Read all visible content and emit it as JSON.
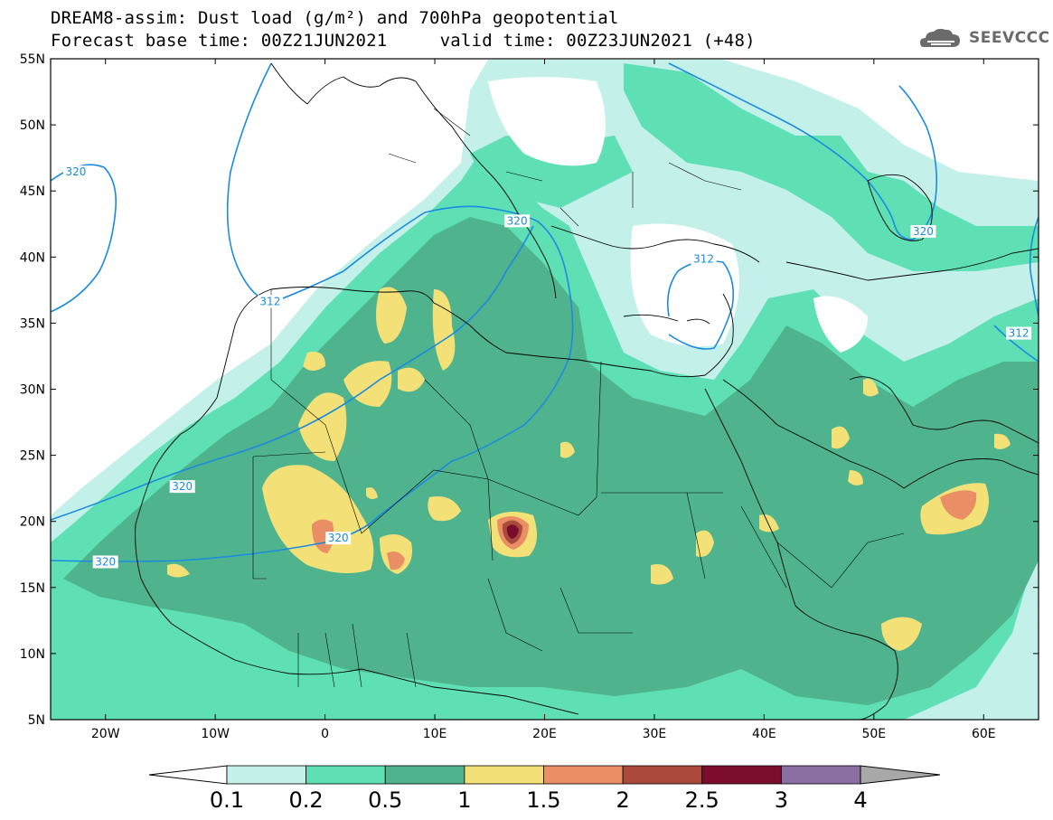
{
  "header": {
    "title_line1": "DREAM8-assim: Dust load (g/m²) and 700hPa geopotential",
    "title_line2": "Forecast base time: 00Z21JUN2021     valid time: 00Z23JUN2021 (+48)"
  },
  "logo": {
    "text": "SEEVCCC",
    "icon": "cloud-icon"
  },
  "map": {
    "lon_range": [
      -25,
      65
    ],
    "lat_range": [
      5,
      55
    ],
    "lat_ticks": [
      {
        "value": 55,
        "label": "55N"
      },
      {
        "value": 50,
        "label": "50N"
      },
      {
        "value": 45,
        "label": "45N"
      },
      {
        "value": 40,
        "label": "40N"
      },
      {
        "value": 35,
        "label": "35N"
      },
      {
        "value": 30,
        "label": "30N"
      },
      {
        "value": 25,
        "label": "25N"
      },
      {
        "value": 20,
        "label": "20N"
      },
      {
        "value": 15,
        "label": "15N"
      },
      {
        "value": 10,
        "label": "10N"
      },
      {
        "value": 5,
        "label": "5N"
      }
    ],
    "lon_ticks": [
      {
        "value": -20,
        "label": "20W"
      },
      {
        "value": -10,
        "label": "10W"
      },
      {
        "value": 0,
        "label": "0"
      },
      {
        "value": 10,
        "label": "10E"
      },
      {
        "value": 20,
        "label": "20E"
      },
      {
        "value": 30,
        "label": "30E"
      },
      {
        "value": 40,
        "label": "40E"
      },
      {
        "value": 50,
        "label": "50E"
      },
      {
        "value": 60,
        "label": "60E"
      }
    ],
    "contour_labels": [
      {
        "text": "320",
        "lon": -22.7,
        "lat": 46.3
      },
      {
        "text": "312",
        "lon": -5.0,
        "lat": 36.5
      },
      {
        "text": "320",
        "lon": 17.5,
        "lat": 42.6
      },
      {
        "text": "312",
        "lon": 34.5,
        "lat": 39.7
      },
      {
        "text": "320",
        "lon": 54.5,
        "lat": 41.8
      },
      {
        "text": "312",
        "lon": 63.2,
        "lat": 34.1
      },
      {
        "text": "320",
        "lon": -13.0,
        "lat": 22.5
      },
      {
        "text": "320",
        "lon": 1.2,
        "lat": 18.6
      },
      {
        "text": "320",
        "lon": -20.0,
        "lat": 16.8
      }
    ]
  },
  "colorbar": {
    "labels": [
      "0.1",
      "0.2",
      "0.5",
      "1",
      "1.5",
      "2",
      "2.5",
      "3",
      "4"
    ],
    "colors": [
      "#c3f0e9",
      "#5ee0b4",
      "#4fb48e",
      "#f3e178",
      "#ea8e65",
      "#a94a3c",
      "#7a0d2c",
      "#8a6fa3",
      "#a8a8a8"
    ]
  }
}
